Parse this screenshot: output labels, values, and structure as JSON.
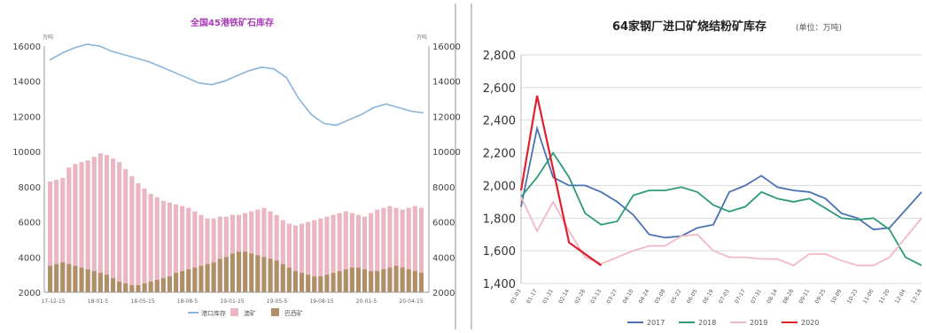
{
  "chart_data": [
    {
      "type": "bar",
      "title": "全国45港铁矿石库存",
      "y_left": {
        "unit_label": "万吨",
        "ylim": [
          2000,
          16000
        ],
        "ticks": [
          2000,
          4000,
          6000,
          8000,
          10000,
          12000,
          14000,
          16000
        ]
      },
      "y_right": {
        "unit_label": "万吨",
        "ylim": [
          2000,
          16000
        ],
        "ticks": [
          2000,
          4000,
          6000,
          8000,
          10000,
          12000,
          14000,
          16000
        ]
      },
      "x_tick_labels": [
        "17-12-15",
        "18-01-5",
        "18-05-15",
        "18-08-5",
        "19-01-15",
        "19-05-5",
        "19-08-15",
        "20-01-5",
        "20-04-15"
      ],
      "legend": [
        "港口库存",
        "澳矿",
        "巴西矿"
      ],
      "series": [
        {
          "name": "港口库存",
          "type": "line",
          "color": "#8ab4d8",
          "values": [
            15200,
            15600,
            15900,
            16100,
            16000,
            15700,
            15500,
            15300,
            15100,
            14800,
            14500,
            14200,
            13900,
            13800,
            14000,
            14300,
            14600,
            14800,
            14700,
            14200,
            13000,
            12100,
            11600,
            11500,
            11800,
            12100,
            12500,
            12700,
            12500,
            12300,
            12200
          ]
        },
        {
          "name": "澳矿",
          "type": "bar",
          "color": "#e9b6c2",
          "values": [
            8300,
            8400,
            8500,
            9100,
            9300,
            9400,
            9500,
            9700,
            9900,
            9800,
            9600,
            9400,
            9000,
            8600,
            8200,
            7900,
            7600,
            7400,
            7200,
            7100,
            7000,
            6900,
            6800,
            6600,
            6400,
            6200,
            6200,
            6300,
            6300,
            6400,
            6400,
            6500,
            6600,
            6700,
            6800,
            6600,
            6400,
            6100,
            5900,
            5800,
            5900,
            6000,
            6100,
            6200,
            6300,
            6400,
            6500,
            6600,
            6500,
            6400,
            6300,
            6500,
            6700,
            6800,
            6900,
            6800,
            6700,
            6800,
            6900,
            6800
          ]
        },
        {
          "name": "巴西矿",
          "type": "bar",
          "color": "#b08f67",
          "values": [
            3500,
            3600,
            3700,
            3600,
            3500,
            3400,
            3300,
            3200,
            3100,
            3000,
            2800,
            2600,
            2500,
            2400,
            2400,
            2500,
            2600,
            2700,
            2800,
            2900,
            3100,
            3200,
            3300,
            3400,
            3500,
            3600,
            3700,
            3900,
            4000,
            4200,
            4300,
            4300,
            4200,
            4100,
            4000,
            3900,
            3800,
            3600,
            3400,
            3200,
            3100,
            3000,
            2900,
            2900,
            3000,
            3100,
            3200,
            3300,
            3400,
            3400,
            3300,
            3200,
            3200,
            3300,
            3400,
            3500,
            3400,
            3300,
            3200,
            3100
          ]
        }
      ]
    },
    {
      "type": "line",
      "title": "64家钢厂进口矿烧结粉矿库存",
      "subtitle": "(单位：万吨)",
      "ylim": [
        1400,
        2800
      ],
      "y_ticks": [
        1400,
        1600,
        1800,
        2000,
        2200,
        2400,
        2600,
        2800
      ],
      "x_tick_labels": [
        "01-03",
        "01-17",
        "01-31",
        "02-14",
        "02-28",
        "03-13",
        "03-27",
        "04-10",
        "04-24",
        "05-08",
        "05-22",
        "06-05",
        "06-19",
        "07-03",
        "07-17",
        "07-31",
        "08-14",
        "08-28",
        "09-11",
        "09-25",
        "10-09",
        "10-23",
        "11-06",
        "11-20",
        "12-04",
        "12-18"
      ],
      "series": [
        {
          "name": "2017",
          "color": "#4a72b0",
          "x_index": [
            0,
            1,
            2,
            3,
            4,
            5,
            6,
            7,
            8,
            9,
            10,
            11,
            12,
            13,
            14,
            15,
            16,
            17,
            18,
            19,
            20,
            21,
            22,
            23,
            24,
            25
          ],
          "values": [
            1870,
            2350,
            2050,
            2000,
            2000,
            1960,
            1900,
            1820,
            1700,
            1680,
            1690,
            1740,
            1760,
            1960,
            2000,
            2060,
            1990,
            1970,
            1960,
            1920,
            1830,
            1800,
            1730,
            1740,
            1850,
            1960
          ]
        },
        {
          "name": "2018",
          "color": "#2e9a7a",
          "x_index": [
            0,
            1,
            2,
            3,
            4,
            5,
            6,
            7,
            8,
            9,
            10,
            11,
            12,
            13,
            14,
            15,
            16,
            17,
            18,
            19,
            20,
            21,
            22,
            23,
            24,
            25
          ],
          "values": [
            1930,
            2050,
            2200,
            2050,
            1830,
            1760,
            1780,
            1940,
            1970,
            1970,
            1990,
            1960,
            1880,
            1840,
            1870,
            1960,
            1920,
            1900,
            1920,
            1860,
            1800,
            1790,
            1800,
            1730,
            1560,
            1510
          ]
        },
        {
          "name": "2019",
          "color": "#f2b8c4",
          "x_index": [
            0,
            1,
            2,
            3,
            4,
            5,
            6,
            7,
            8,
            9,
            10,
            11,
            12,
            13,
            14,
            15,
            16,
            17,
            18,
            19,
            20,
            21,
            22,
            23,
            24,
            25
          ],
          "values": [
            1930,
            1720,
            1900,
            1720,
            1560,
            1520,
            1560,
            1600,
            1630,
            1630,
            1690,
            1700,
            1600,
            1560,
            1560,
            1550,
            1550,
            1510,
            1580,
            1580,
            1540,
            1510,
            1510,
            1560,
            1680,
            1800
          ]
        },
        {
          "name": "2020",
          "color": "#e0202e",
          "x_index": [
            0,
            1,
            2,
            3,
            4,
            5
          ],
          "values": [
            1970,
            2550,
            2100,
            1650,
            1580,
            1510
          ]
        }
      ]
    }
  ]
}
